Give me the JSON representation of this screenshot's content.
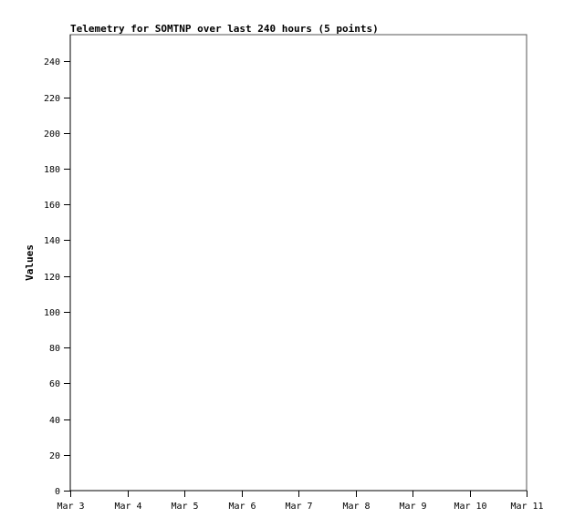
{
  "chart_data": {
    "type": "line",
    "title": "Telemetry for SOMTNP over last 240 hours (5 points)",
    "xlabel": "",
    "ylabel": "Values",
    "x_tick_labels": [
      "Mar 3",
      "Mar 4",
      "Mar 5",
      "Mar 6",
      "Mar 7",
      "Mar 8",
      "Mar 9",
      "Mar 10",
      "Mar 11"
    ],
    "y_ticks": [
      0,
      20,
      40,
      60,
      80,
      100,
      120,
      140,
      160,
      180,
      200,
      220,
      240
    ],
    "ylim": [
      0,
      255
    ],
    "grid": false,
    "series": [],
    "colors": {
      "axis": "#000000",
      "frame": "#555555",
      "background": "#ffffff"
    }
  }
}
